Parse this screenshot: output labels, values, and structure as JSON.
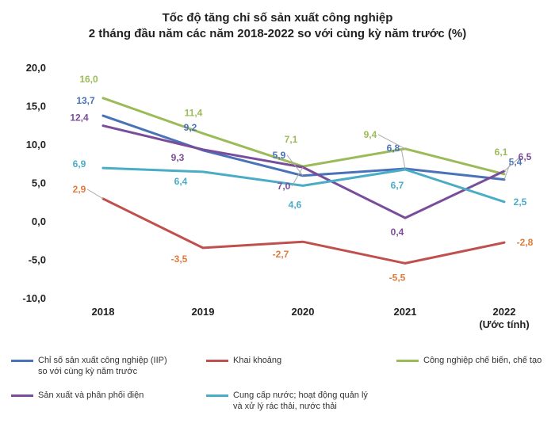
{
  "chart_data": {
    "type": "line",
    "title": "Tốc độ tăng chỉ số sản xuất công nghiệp",
    "subtitle": "2 tháng đầu năm các năm 2018-2022 so với cùng kỳ năm trước (%)",
    "categories": [
      "2018",
      "2019",
      "2020",
      "2021",
      "2022"
    ],
    "category_sublabels": [
      "",
      "",
      "",
      "",
      "(Ước tính)"
    ],
    "ylim": [
      -10,
      20
    ],
    "yticks": [
      "20,0",
      "15,0",
      "10,0",
      "5,0",
      "0,0",
      "-5,0",
      "-10,0"
    ],
    "grid": false,
    "legend_position": "bottom",
    "series": [
      {
        "name": "Chỉ số sản xuất công nghiệp (IIP)\nso với cùng kỳ năm trước",
        "color": "#4a72b8",
        "values": [
          13.7,
          9.2,
          5.9,
          6.8,
          5.4
        ],
        "labels": [
          "13,7",
          "9,2",
          "5,9",
          "6,8",
          "5,4"
        ]
      },
      {
        "name": "Khai khoảng",
        "color": "#c0504d",
        "values": [
          2.9,
          -3.5,
          -2.7,
          -5.5,
          -2.8
        ],
        "labels": [
          "2,9",
          "-3,5",
          "-2,7",
          "-5,5",
          "-2,8"
        ]
      },
      {
        "name": "Công nghiệp chế biến, chế tạo",
        "color": "#9bbb59",
        "values": [
          16.0,
          11.4,
          7.1,
          9.4,
          6.1
        ],
        "labels": [
          "16,0",
          "11,4",
          "7,1",
          "9,4",
          "6,1"
        ]
      },
      {
        "name": "Sản xuất và phân phối điện",
        "color": "#7a4d9c",
        "values": [
          12.4,
          9.3,
          7.0,
          0.4,
          6.5
        ],
        "labels": [
          "12,4",
          "9,3",
          "7,0",
          "0,4",
          "6,5"
        ]
      },
      {
        "name": "Cung cấp nước; hoạt động quản lý\nvà xử lý rác thải, nước thải",
        "color": "#4bacc6",
        "values": [
          6.9,
          6.4,
          4.6,
          6.7,
          2.5
        ],
        "labels": [
          "6,9",
          "6,4",
          "4,6",
          "6,7",
          "2,5"
        ]
      }
    ]
  }
}
